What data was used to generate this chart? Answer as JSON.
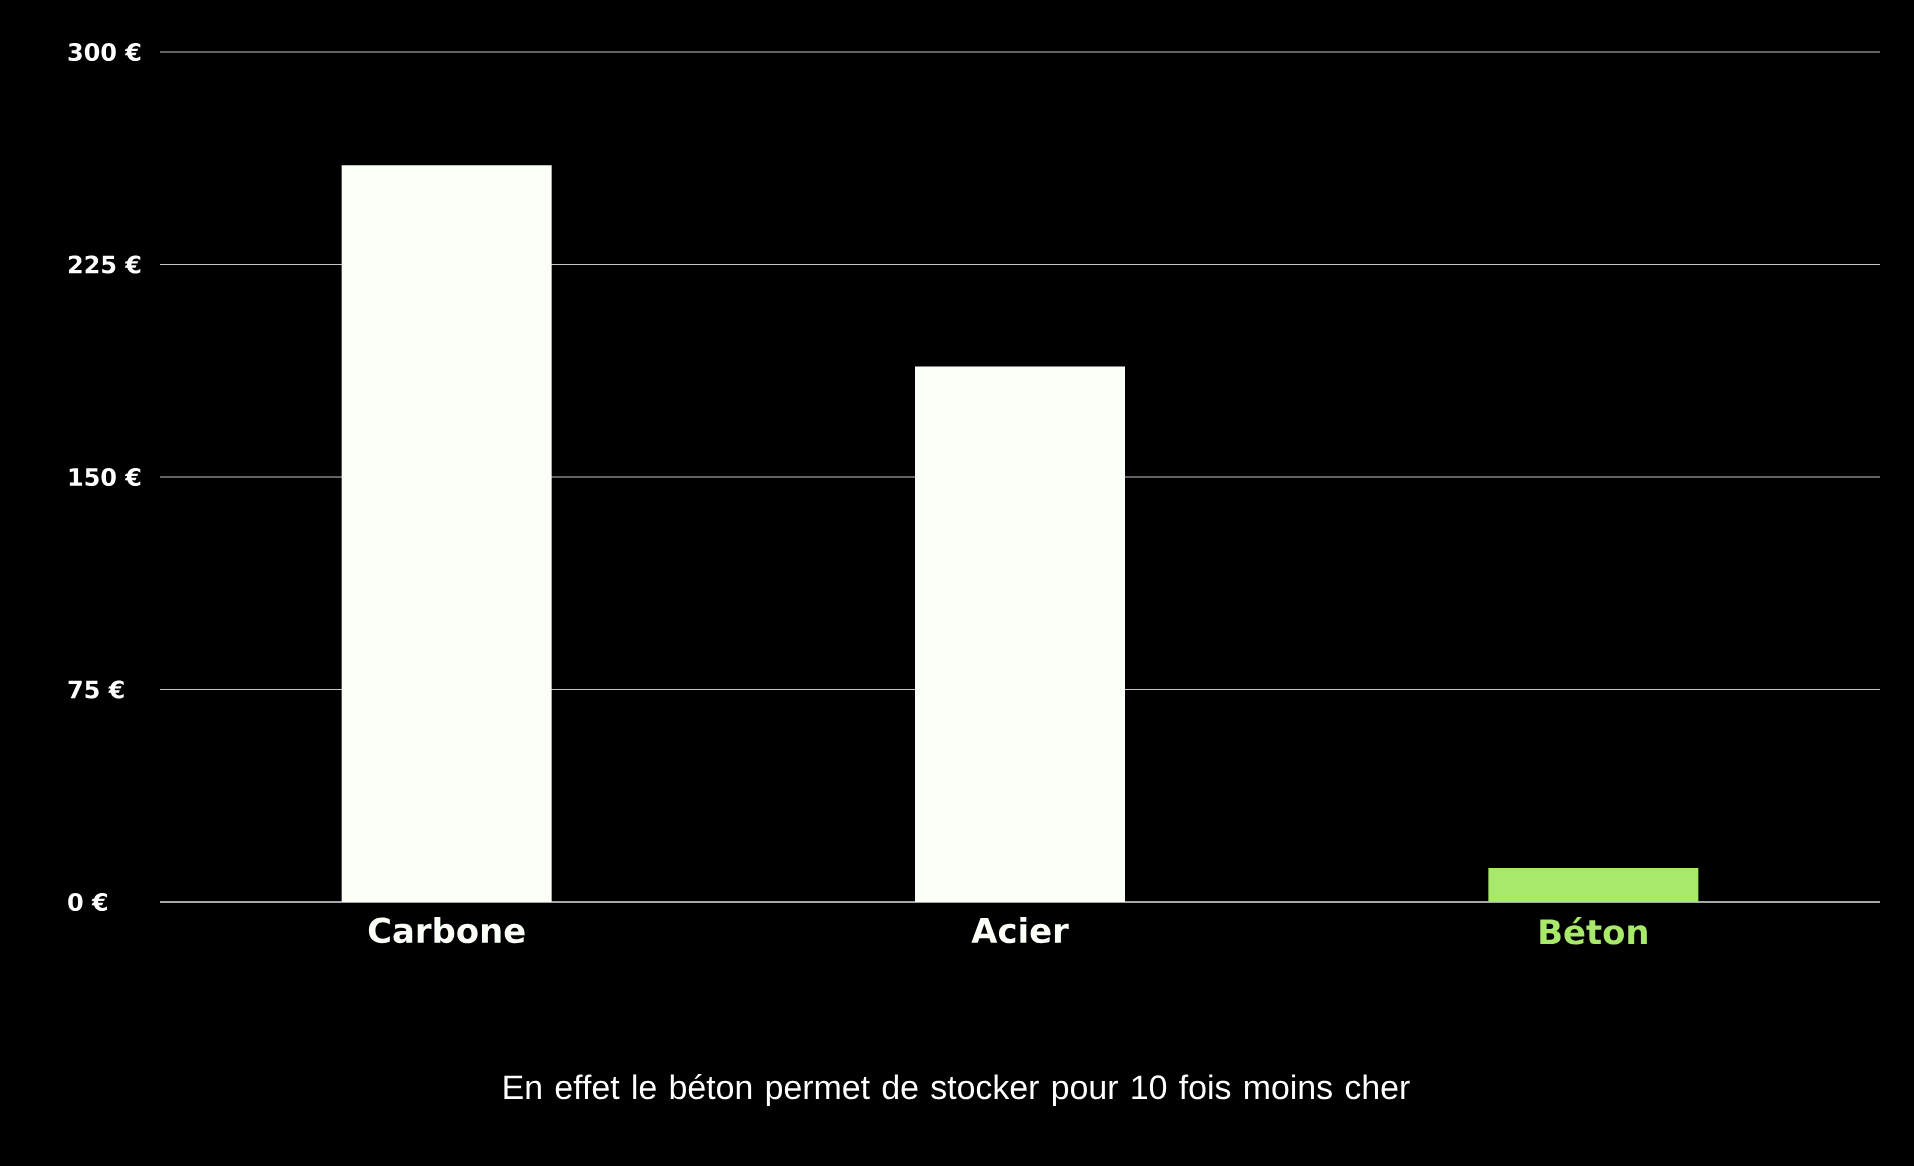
{
  "chart_data": {
    "type": "bar",
    "categories": [
      "Carbone",
      "Acier",
      "Béton"
    ],
    "values": [
      260,
      189,
      12
    ],
    "colors": [
      "#fafff8",
      "#fafff8",
      "#a8e86a"
    ],
    "ylim": [
      0,
      300
    ],
    "yticks": [
      {
        "value": 0,
        "label": "0 €"
      },
      {
        "value": 75,
        "label": "75 €"
      },
      {
        "value": 150,
        "label": "150 €"
      },
      {
        "value": 225,
        "label": "225 €"
      },
      {
        "value": 300,
        "label": "300 €"
      }
    ],
    "grid": "y",
    "annotations": [
      "En effet le béton permet de stocker pour 10 fois moins cher"
    ]
  }
}
